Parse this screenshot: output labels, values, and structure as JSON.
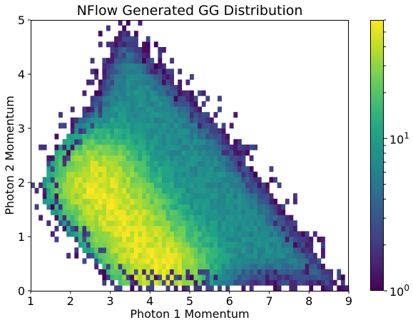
{
  "chart_data": {
    "type": "heatmap",
    "title": "NFlow Generated GG Distribution",
    "xlabel": "Photon 1 Momentum",
    "ylabel": "Photon 2 Momentum",
    "xlim": [
      1,
      9
    ],
    "ylim": [
      0,
      5
    ],
    "x_ticks": [
      1,
      2,
      3,
      4,
      5,
      6,
      7,
      8,
      9
    ],
    "y_ticks": [
      0,
      1,
      2,
      3,
      4,
      5
    ],
    "colorbar": {
      "scale": "log",
      "colormap": "viridis",
      "range": [
        1,
        60
      ],
      "tick_labels": [
        {
          "value": 1,
          "base": "10",
          "exp": "0"
        },
        {
          "value": 10,
          "base": "10",
          "exp": "1"
        }
      ]
    },
    "density_model": {
      "description": "2D histogram of photon momenta; dense core near (2.6, 2.0) sweeping down to (4.3, 0.3), outer envelope bounded by x≈1.3 on the left and a diagonal edge from (3.2, 4.9) to (8.8, 0.1)",
      "peak_count": 45,
      "cores": [
        {
          "x": 2.6,
          "y": 2.05,
          "amp": 38
        },
        {
          "x": 3.4,
          "y": 1.2,
          "amp": 34
        },
        {
          "x": 4.3,
          "y": 0.32,
          "amp": 45
        }
      ],
      "boundary": [
        [
          1.3,
          2.0
        ],
        [
          1.6,
          2.6
        ],
        [
          2.4,
          3.3
        ],
        [
          3.3,
          4.9
        ],
        [
          5.8,
          3.0
        ],
        [
          8.8,
          0.1
        ],
        [
          3.3,
          0.05
        ],
        [
          2.0,
          1.0
        ],
        [
          1.3,
          1.7
        ]
      ]
    },
    "bins": {
      "x": 80,
      "y": 50
    }
  },
  "colors": {
    "background": "#ffffff",
    "empty_bin": "#ffffff"
  }
}
